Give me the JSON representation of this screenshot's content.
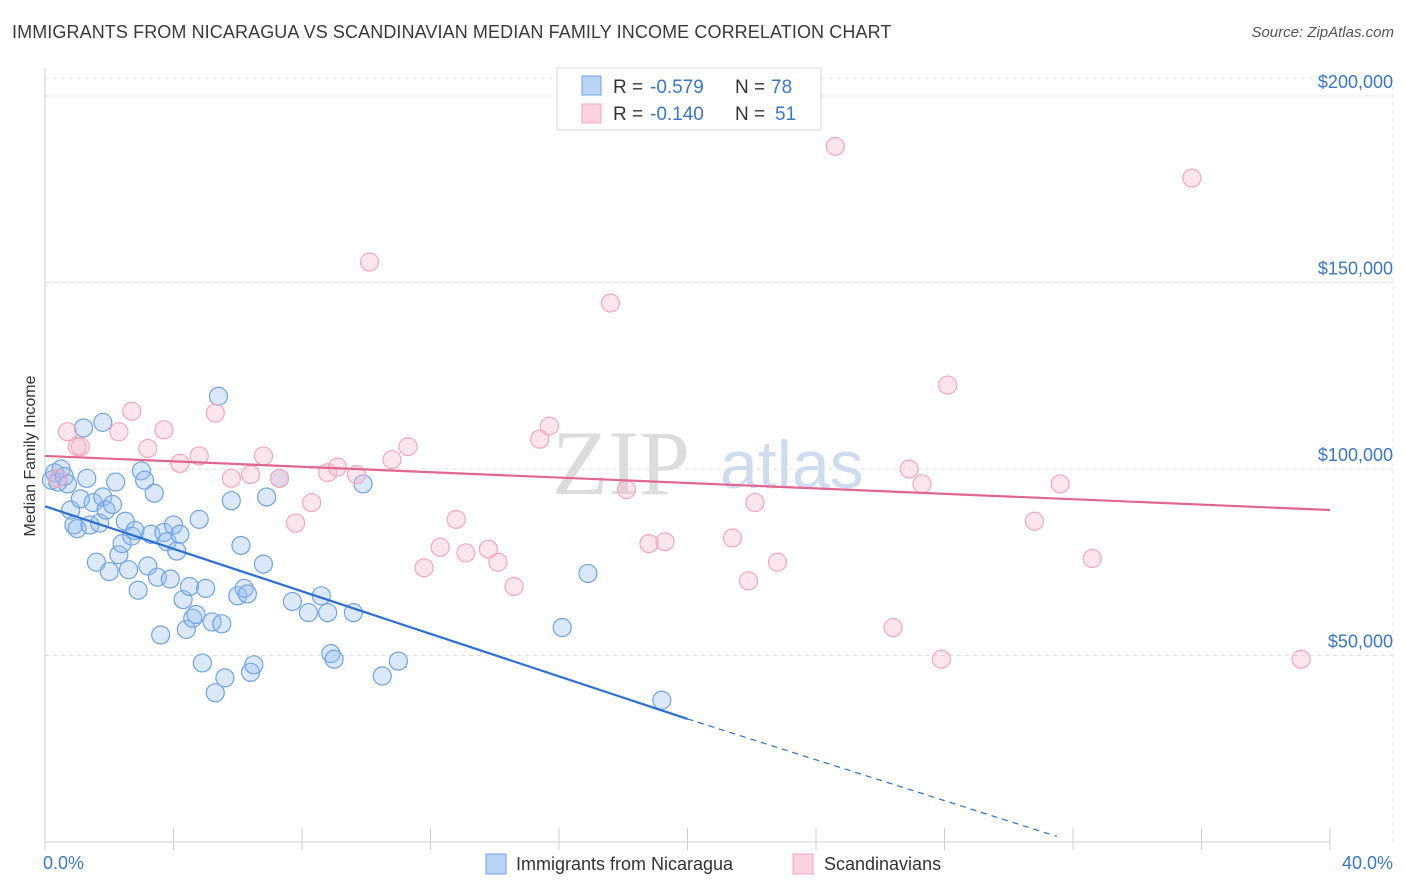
{
  "header": {
    "title": "IMMIGRANTS FROM NICARAGUA VS SCANDINAVIAN MEDIAN FAMILY INCOME CORRELATION CHART",
    "source": "Source: ZipAtlas.com"
  },
  "watermark": {
    "zip": "ZIP",
    "atlas": "atlas"
  },
  "stats_legend": {
    "rows": [
      {
        "r_label": "R =",
        "r_value": "-0.579",
        "n_label": "N =",
        "n_value": "78"
      },
      {
        "r_label": "R =",
        "r_value": "-0.140",
        "n_label": "N =",
        "n_value": "51"
      }
    ]
  },
  "chart_data": {
    "type": "scatter",
    "title": "IMMIGRANTS FROM NICARAGUA VS SCANDINAVIAN MEDIAN FAMILY INCOME CORRELATION CHART",
    "xlabel": "",
    "ylabel": "Median Family Income",
    "xlim": [
      0,
      40
    ],
    "ylim": [
      0,
      210000
    ],
    "x_tick_labels": [
      "0.0%",
      "40.0%"
    ],
    "y_ticks": [
      {
        "value": 50000,
        "label": "$50,000"
      },
      {
        "value": 100000,
        "label": "$100,000"
      },
      {
        "value": 150000,
        "label": "$150,000"
      },
      {
        "value": 200000,
        "label": "$200,000"
      }
    ],
    "grid": true,
    "legend_position": "bottom",
    "series": [
      {
        "name": "Immigrants from Nicaragua",
        "color": "#6fa3e6",
        "line_color": "#2b6fd0",
        "r": -0.579,
        "n": 78,
        "trend": {
          "x0": 0,
          "y0": 90000,
          "x1": 20,
          "y1": 33000,
          "dash_to_x": 31.5,
          "dash_to_y": 1500
        },
        "points": [
          [
            0.2,
            97000
          ],
          [
            0.3,
            99000
          ],
          [
            0.4,
            96500
          ],
          [
            0.5,
            100000
          ],
          [
            0.6,
            98000
          ],
          [
            0.7,
            96000
          ],
          [
            0.8,
            89000
          ],
          [
            0.9,
            85000
          ],
          [
            1.0,
            84000
          ],
          [
            1.1,
            92000
          ],
          [
            1.2,
            111000
          ],
          [
            1.3,
            97500
          ],
          [
            1.4,
            85000
          ],
          [
            1.5,
            91000
          ],
          [
            1.6,
            75000
          ],
          [
            1.7,
            85500
          ],
          [
            1.8,
            92500
          ],
          [
            1.9,
            89000
          ],
          [
            1.8,
            112500
          ],
          [
            2.0,
            72500
          ],
          [
            2.1,
            90500
          ],
          [
            2.2,
            96500
          ],
          [
            2.3,
            77000
          ],
          [
            2.4,
            80000
          ],
          [
            2.5,
            86000
          ],
          [
            2.6,
            73000
          ],
          [
            2.7,
            82000
          ],
          [
            2.8,
            83500
          ],
          [
            2.9,
            67500
          ],
          [
            3.0,
            99500
          ],
          [
            3.1,
            97000
          ],
          [
            3.2,
            74000
          ],
          [
            3.3,
            82500
          ],
          [
            3.4,
            93500
          ],
          [
            3.5,
            71000
          ],
          [
            3.6,
            55500
          ],
          [
            3.7,
            83000
          ],
          [
            3.8,
            80500
          ],
          [
            3.9,
            70500
          ],
          [
            4.0,
            85000
          ],
          [
            4.1,
            78000
          ],
          [
            4.2,
            82500
          ],
          [
            4.3,
            65000
          ],
          [
            4.4,
            57000
          ],
          [
            4.5,
            68500
          ],
          [
            4.6,
            60000
          ],
          [
            4.7,
            61000
          ],
          [
            4.8,
            86500
          ],
          [
            4.9,
            48000
          ],
          [
            5.0,
            68000
          ],
          [
            5.2,
            59000
          ],
          [
            5.3,
            40000
          ],
          [
            5.4,
            119500
          ],
          [
            5.5,
            58500
          ],
          [
            5.6,
            44000
          ],
          [
            5.8,
            91500
          ],
          [
            6.0,
            66000
          ],
          [
            6.1,
            79500
          ],
          [
            6.2,
            68000
          ],
          [
            6.3,
            66500
          ],
          [
            6.4,
            45500
          ],
          [
            6.5,
            47500
          ],
          [
            6.8,
            74500
          ],
          [
            6.9,
            92500
          ],
          [
            7.3,
            97500
          ],
          [
            7.7,
            64500
          ],
          [
            8.2,
            61500
          ],
          [
            8.6,
            66000
          ],
          [
            8.8,
            61500
          ],
          [
            8.9,
            50500
          ],
          [
            9.0,
            49000
          ],
          [
            9.6,
            61500
          ],
          [
            9.9,
            96000
          ],
          [
            10.5,
            44500
          ],
          [
            11.0,
            48500
          ],
          [
            16.1,
            57500
          ],
          [
            16.9,
            72000
          ],
          [
            19.2,
            38000
          ]
        ]
      },
      {
        "name": "Scandinavians",
        "color": "#f4a6bd",
        "line_color": "#e06690",
        "r": -0.14,
        "n": 51,
        "trend": {
          "x0": 0,
          "y0": 103500,
          "x1": 40,
          "y1": 89000
        },
        "points": [
          [
            0.4,
            97500
          ],
          [
            0.7,
            110000
          ],
          [
            1.0,
            106000
          ],
          [
            1.1,
            106000
          ],
          [
            2.3,
            110000
          ],
          [
            2.7,
            115500
          ],
          [
            3.2,
            105500
          ],
          [
            3.7,
            110500
          ],
          [
            4.2,
            101500
          ],
          [
            4.8,
            103500
          ],
          [
            5.3,
            115000
          ],
          [
            5.8,
            97500
          ],
          [
            6.4,
            98500
          ],
          [
            6.8,
            103500
          ],
          [
            7.3,
            97500
          ],
          [
            7.8,
            85500
          ],
          [
            8.3,
            91000
          ],
          [
            8.8,
            99000
          ],
          [
            9.1,
            100500
          ],
          [
            9.7,
            98500
          ],
          [
            10.1,
            155500
          ],
          [
            10.8,
            102500
          ],
          [
            11.3,
            106000
          ],
          [
            11.8,
            73500
          ],
          [
            12.3,
            79000
          ],
          [
            12.8,
            86500
          ],
          [
            13.1,
            77500
          ],
          [
            13.8,
            78500
          ],
          [
            14.1,
            75000
          ],
          [
            14.6,
            68500
          ],
          [
            15.4,
            108000
          ],
          [
            15.7,
            111500
          ],
          [
            17.6,
            144500
          ],
          [
            18.1,
            94500
          ],
          [
            18.8,
            80000
          ],
          [
            19.3,
            80500
          ],
          [
            21.4,
            81500
          ],
          [
            21.9,
            70000
          ],
          [
            22.1,
            91000
          ],
          [
            22.8,
            75000
          ],
          [
            24.6,
            186500
          ],
          [
            26.4,
            57500
          ],
          [
            26.9,
            100000
          ],
          [
            27.3,
            96000
          ],
          [
            27.9,
            49000
          ],
          [
            28.1,
            122500
          ],
          [
            30.8,
            86000
          ],
          [
            31.6,
            96000
          ],
          [
            32.6,
            76000
          ],
          [
            35.7,
            178000
          ],
          [
            39.1,
            49000
          ]
        ]
      }
    ]
  }
}
